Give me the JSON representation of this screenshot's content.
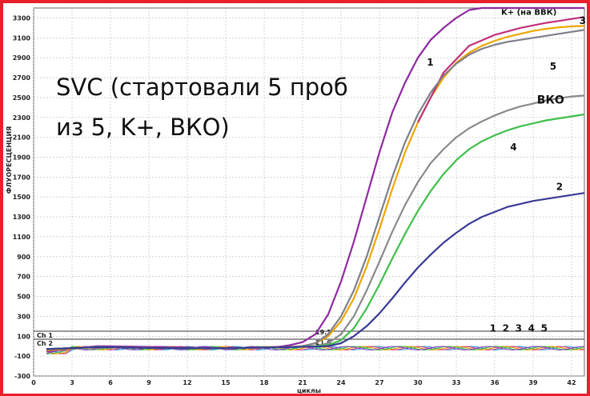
{
  "overlay": {
    "line1": "SVC (стартовали 5 проб",
    "line2": "из 5, K+, ВКО)"
  },
  "chart_data": {
    "type": "line",
    "title": "",
    "xlabel": "циклы",
    "ylabel": "флуоресценция",
    "xlim": [
      0,
      43
    ],
    "ylim": [
      -300,
      3400
    ],
    "x_ticks": [
      0,
      3,
      6,
      9,
      12,
      15,
      18,
      21,
      24,
      27,
      30,
      33,
      36,
      39,
      42
    ],
    "y_ticks": [
      -300,
      -100,
      100,
      300,
      500,
      700,
      900,
      1100,
      1300,
      1500,
      1700,
      1900,
      2100,
      2300,
      2500,
      2700,
      2900,
      3100,
      3300
    ],
    "grid": true,
    "channels": [
      {
        "label": "Ch 1",
        "value": 150
      },
      {
        "label": "Ch 2",
        "value": 70
      }
    ],
    "threshold_labels": [
      {
        "text": "19.1",
        "x": 22,
        "y": 120
      },
      {
        "text": "21.6",
        "x": 22,
        "y": 15
      }
    ],
    "series": [
      {
        "name": "K+ (на ВВК)",
        "color": "#8e2aa0",
        "x": [
          1,
          5,
          10,
          15,
          19,
          20,
          21,
          22,
          23,
          24,
          25,
          26,
          27,
          28,
          29,
          30,
          31,
          32,
          33,
          34,
          35,
          36,
          37,
          38,
          39,
          40,
          41,
          42,
          43
        ],
        "y": [
          -50,
          0,
          -10,
          -20,
          -10,
          10,
          40,
          120,
          320,
          650,
          1050,
          1500,
          1950,
          2350,
          2650,
          2900,
          3080,
          3200,
          3300,
          3380,
          3400,
          3400,
          3400,
          3400,
          3400,
          3400,
          3400,
          3400,
          3400
        ]
      },
      {
        "name": "1",
        "color": "#f0a500",
        "x": [
          1,
          5,
          10,
          15,
          20,
          21,
          22,
          23,
          24,
          25,
          26,
          27,
          28,
          29,
          30,
          31,
          32,
          33,
          34,
          35,
          36,
          37,
          38,
          39,
          40,
          41,
          42,
          43
        ],
        "y": [
          -40,
          -10,
          -20,
          -20,
          -10,
          0,
          30,
          100,
          250,
          480,
          800,
          1180,
          1580,
          1950,
          2250,
          2500,
          2700,
          2850,
          2950,
          3020,
          3070,
          3110,
          3140,
          3170,
          3190,
          3205,
          3215,
          3220
        ]
      },
      {
        "name": "3",
        "color": "#c0307a",
        "x": [
          30,
          32,
          34,
          36,
          38,
          40,
          41,
          42,
          43
        ],
        "y": [
          2250,
          2750,
          3020,
          3130,
          3200,
          3250,
          3270,
          3290,
          3310
        ]
      },
      {
        "name": "5",
        "color": "#7f7f8a",
        "x": [
          1,
          5,
          10,
          15,
          20,
          21,
          22,
          23,
          24,
          25,
          26,
          27,
          28,
          29,
          30,
          31,
          32,
          33,
          34,
          35,
          36,
          37,
          38,
          39,
          40,
          41,
          42,
          43
        ],
        "y": [
          -30,
          -10,
          -20,
          -20,
          -10,
          0,
          30,
          120,
          300,
          560,
          900,
          1300,
          1700,
          2050,
          2330,
          2550,
          2720,
          2840,
          2930,
          2990,
          3030,
          3060,
          3080,
          3100,
          3120,
          3140,
          3160,
          3180
        ]
      },
      {
        "name": "ВКО",
        "color": "#8a8a8a",
        "x": [
          1,
          5,
          10,
          15,
          20,
          22,
          23,
          24,
          25,
          26,
          27,
          28,
          29,
          30,
          31,
          32,
          33,
          34,
          35,
          36,
          37,
          38,
          39,
          40,
          41,
          42,
          43
        ],
        "y": [
          -30,
          -10,
          -20,
          -20,
          -10,
          0,
          30,
          120,
          300,
          560,
          850,
          1150,
          1420,
          1650,
          1840,
          1980,
          2100,
          2190,
          2260,
          2320,
          2370,
          2410,
          2440,
          2470,
          2490,
          2510,
          2520
        ]
      },
      {
        "name": "4",
        "color": "#3fbf4a",
        "x": [
          1,
          5,
          10,
          15,
          20,
          22,
          23,
          24,
          25,
          26,
          27,
          28,
          29,
          30,
          31,
          32,
          33,
          34,
          35,
          36,
          37,
          38,
          39,
          40,
          41,
          42,
          43
        ],
        "y": [
          -30,
          -10,
          -20,
          -20,
          -10,
          0,
          10,
          60,
          180,
          380,
          620,
          880,
          1130,
          1360,
          1560,
          1730,
          1870,
          1980,
          2060,
          2120,
          2170,
          2210,
          2240,
          2270,
          2290,
          2310,
          2330
        ]
      },
      {
        "name": "2",
        "color": "#3a3a96",
        "x": [
          1,
          5,
          10,
          15,
          20,
          23,
          24,
          25,
          26,
          27,
          28,
          29,
          30,
          31,
          32,
          33,
          34,
          35,
          36,
          37,
          38,
          39,
          40,
          41,
          42,
          43
        ],
        "y": [
          -30,
          -10,
          -20,
          -20,
          -10,
          0,
          30,
          100,
          200,
          330,
          480,
          640,
          790,
          920,
          1040,
          1140,
          1230,
          1300,
          1350,
          1400,
          1430,
          1460,
          1480,
          1500,
          1520,
          1540
        ]
      }
    ],
    "curve_labels": [
      {
        "text": "K+ (на ВВК)",
        "x": 36.5,
        "y": 3330,
        "size": 10
      },
      {
        "text": "1",
        "x": 30.7,
        "y": 2820,
        "size": 12
      },
      {
        "text": "3",
        "x": 42.6,
        "y": 3240,
        "size": 12
      },
      {
        "text": "5",
        "x": 40.3,
        "y": 2780,
        "size": 12
      },
      {
        "text": "ВКО",
        "x": 39.3,
        "y": 2440,
        "size": 14
      },
      {
        "text": "4",
        "x": 37.2,
        "y": 1970,
        "size": 12
      },
      {
        "text": "2",
        "x": 40.8,
        "y": 1570,
        "size": 12
      },
      {
        "text": "1",
        "x": 35.6,
        "y": 145,
        "size": 12
      },
      {
        "text": "2",
        "x": 36.6,
        "y": 145,
        "size": 12
      },
      {
        "text": "3",
        "x": 37.6,
        "y": 145,
        "size": 12
      },
      {
        "text": "4",
        "x": 38.6,
        "y": 145,
        "size": 12
      },
      {
        "text": "5",
        "x": 39.6,
        "y": 145,
        "size": 12
      }
    ]
  }
}
